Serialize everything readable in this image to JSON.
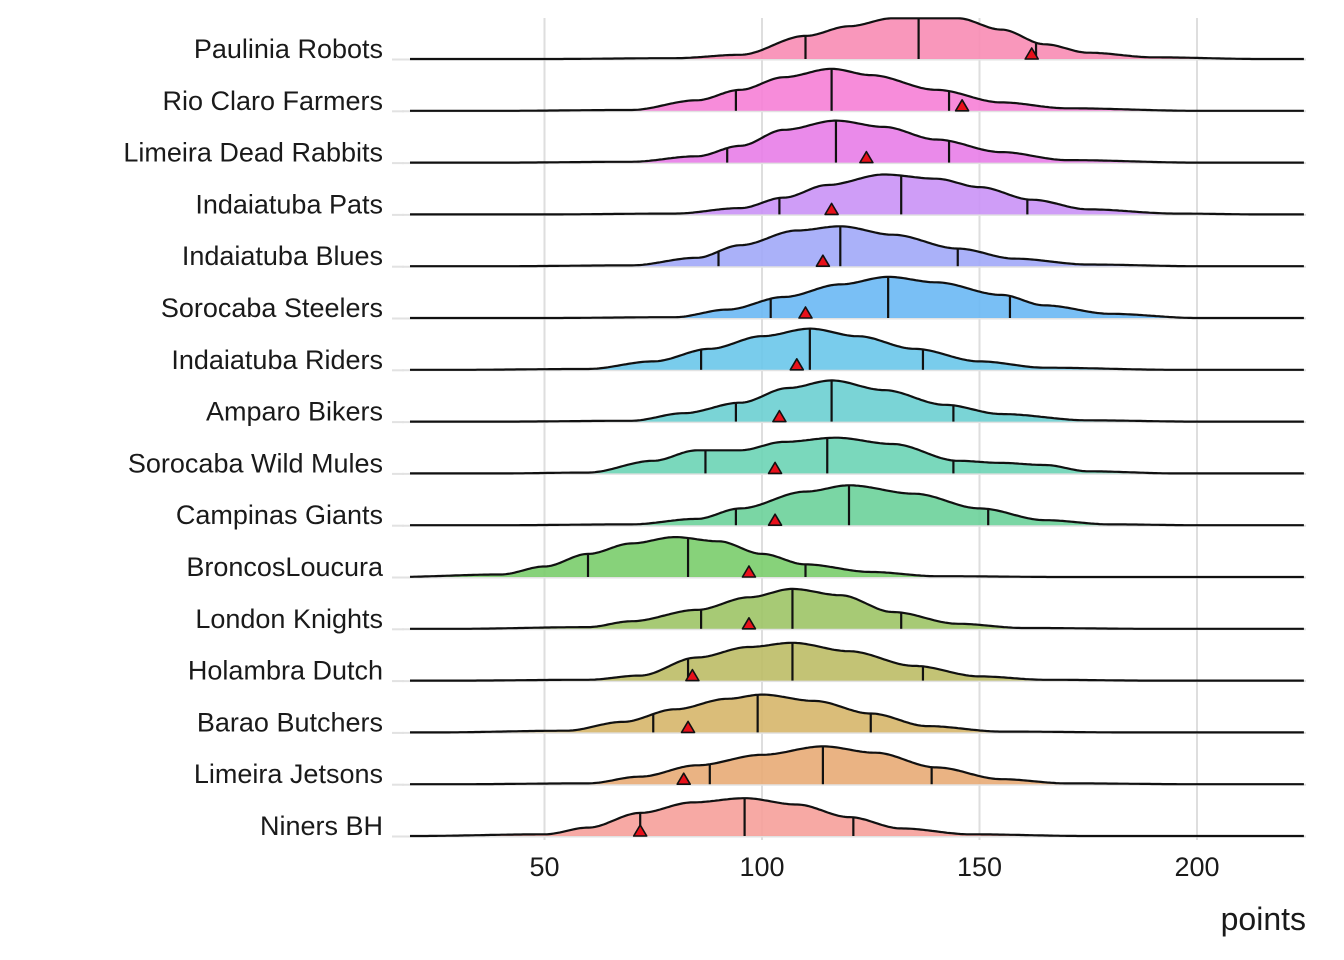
{
  "chart_data": {
    "type": "ridgeline",
    "xlabel": "points",
    "ylabel": "",
    "title": "",
    "xlim": [
      20,
      225
    ],
    "x_ticks": [
      50,
      100,
      150,
      200
    ],
    "x_tick_labels": [
      "50",
      "100",
      "150",
      "200"
    ],
    "grid": true,
    "legend": "none",
    "marker_color": "#e8101a",
    "series": [
      {
        "name": "Paulinia Robots",
        "color": "#f88cb4",
        "mode": 136,
        "q1": 110,
        "median": 136,
        "q3": 163,
        "marker": 162,
        "shape": [
          [
            50,
            0.0
          ],
          [
            80,
            0.02
          ],
          [
            95,
            0.1
          ],
          [
            110,
            0.55
          ],
          [
            120,
            0.78
          ],
          [
            130,
            0.97
          ],
          [
            145,
            0.97
          ],
          [
            155,
            0.7
          ],
          [
            165,
            0.35
          ],
          [
            175,
            0.15
          ],
          [
            190,
            0.04
          ],
          [
            215,
            0.0
          ]
        ]
      },
      {
        "name": "Rio Claro Farmers",
        "color": "#f67fd6",
        "mode": 116,
        "q1": 94,
        "median": 116,
        "q3": 143,
        "marker": 146,
        "shape": [
          [
            40,
            0.0
          ],
          [
            70,
            0.02
          ],
          [
            85,
            0.25
          ],
          [
            95,
            0.5
          ],
          [
            105,
            0.8
          ],
          [
            116,
            1.0
          ],
          [
            125,
            0.85
          ],
          [
            140,
            0.5
          ],
          [
            155,
            0.2
          ],
          [
            170,
            0.06
          ],
          [
            200,
            0.0
          ]
        ]
      },
      {
        "name": "Limeira Dead Rabbits",
        "color": "#e87de8",
        "mode": 117,
        "q1": 92,
        "median": 117,
        "q3": 143,
        "marker": 124,
        "shape": [
          [
            40,
            0.0
          ],
          [
            70,
            0.02
          ],
          [
            85,
            0.15
          ],
          [
            95,
            0.4
          ],
          [
            105,
            0.78
          ],
          [
            117,
            1.0
          ],
          [
            128,
            0.85
          ],
          [
            140,
            0.55
          ],
          [
            155,
            0.25
          ],
          [
            170,
            0.06
          ],
          [
            200,
            0.0
          ]
        ]
      },
      {
        "name": "Indaiatuba Pats",
        "color": "#ca92f6",
        "mode": 132,
        "q1": 104,
        "median": 132,
        "q3": 161,
        "marker": 116,
        "shape": [
          [
            50,
            0.0
          ],
          [
            80,
            0.02
          ],
          [
            95,
            0.15
          ],
          [
            105,
            0.4
          ],
          [
            115,
            0.7
          ],
          [
            128,
            0.95
          ],
          [
            140,
            0.85
          ],
          [
            150,
            0.65
          ],
          [
            162,
            0.35
          ],
          [
            175,
            0.12
          ],
          [
            195,
            0.02
          ],
          [
            215,
            0.0
          ]
        ]
      },
      {
        "name": "Indaiatuba Blues",
        "color": "#a1a8f8",
        "mode": 118,
        "q1": 90,
        "median": 118,
        "q3": 145,
        "marker": 114,
        "shape": [
          [
            40,
            0.0
          ],
          [
            70,
            0.02
          ],
          [
            85,
            0.2
          ],
          [
            95,
            0.5
          ],
          [
            108,
            0.85
          ],
          [
            118,
            0.95
          ],
          [
            130,
            0.75
          ],
          [
            145,
            0.42
          ],
          [
            158,
            0.18
          ],
          [
            175,
            0.04
          ],
          [
            200,
            0.0
          ]
        ]
      },
      {
        "name": "Sorocaba Steelers",
        "color": "#6ab8f4",
        "mode": 129,
        "q1": 102,
        "median": 129,
        "q3": 157,
        "marker": 110,
        "shape": [
          [
            50,
            0.0
          ],
          [
            80,
            0.02
          ],
          [
            92,
            0.2
          ],
          [
            105,
            0.5
          ],
          [
            118,
            0.8
          ],
          [
            129,
            0.98
          ],
          [
            140,
            0.85
          ],
          [
            155,
            0.55
          ],
          [
            165,
            0.3
          ],
          [
            180,
            0.1
          ],
          [
            200,
            0.0
          ]
        ]
      },
      {
        "name": "Indaiatuba Riders",
        "color": "#6ac6ea",
        "mode": 111,
        "q1": 86,
        "median": 111,
        "q3": 137,
        "marker": 108,
        "shape": [
          [
            30,
            0.0
          ],
          [
            60,
            0.02
          ],
          [
            75,
            0.2
          ],
          [
            88,
            0.5
          ],
          [
            100,
            0.8
          ],
          [
            111,
            0.98
          ],
          [
            122,
            0.8
          ],
          [
            135,
            0.5
          ],
          [
            150,
            0.2
          ],
          [
            165,
            0.05
          ],
          [
            195,
            0.0
          ]
        ]
      },
      {
        "name": "Amparo Bikers",
        "color": "#6ccfd2",
        "mode": 116,
        "q1": 94,
        "median": 116,
        "q3": 144,
        "marker": 104,
        "shape": [
          [
            40,
            0.0
          ],
          [
            70,
            0.02
          ],
          [
            82,
            0.2
          ],
          [
            95,
            0.45
          ],
          [
            106,
            0.8
          ],
          [
            116,
            0.98
          ],
          [
            128,
            0.75
          ],
          [
            142,
            0.4
          ],
          [
            155,
            0.18
          ],
          [
            175,
            0.03
          ],
          [
            200,
            0.0
          ]
        ]
      },
      {
        "name": "Sorocaba Wild Mules",
        "color": "#6cd4b5",
        "mode": 115,
        "q1": 87,
        "median": 115,
        "q3": 144,
        "marker": 103,
        "shape": [
          [
            40,
            0.0
          ],
          [
            60,
            0.02
          ],
          [
            75,
            0.3
          ],
          [
            85,
            0.55
          ],
          [
            95,
            0.55
          ],
          [
            105,
            0.75
          ],
          [
            117,
            0.85
          ],
          [
            130,
            0.7
          ],
          [
            145,
            0.3
          ],
          [
            155,
            0.25
          ],
          [
            165,
            0.2
          ],
          [
            175,
            0.05
          ],
          [
            195,
            0.0
          ]
        ]
      },
      {
        "name": "Campinas Giants",
        "color": "#6cd19a",
        "mode": 120,
        "q1": 94,
        "median": 120,
        "q3": 152,
        "marker": 103,
        "shape": [
          [
            40,
            0.0
          ],
          [
            70,
            0.02
          ],
          [
            85,
            0.15
          ],
          [
            95,
            0.4
          ],
          [
            110,
            0.8
          ],
          [
            120,
            0.95
          ],
          [
            135,
            0.75
          ],
          [
            150,
            0.4
          ],
          [
            165,
            0.12
          ],
          [
            180,
            0.02
          ],
          [
            200,
            0.0
          ]
        ]
      },
      {
        "name": "BroncosLoucura",
        "color": "#7acd6c",
        "mode": 83,
        "q1": 60,
        "median": 83,
        "q3": 110,
        "marker": 97,
        "shape": [
          [
            15,
            0.0
          ],
          [
            40,
            0.06
          ],
          [
            50,
            0.25
          ],
          [
            60,
            0.55
          ],
          [
            70,
            0.8
          ],
          [
            80,
            0.95
          ],
          [
            90,
            0.85
          ],
          [
            100,
            0.55
          ],
          [
            110,
            0.3
          ],
          [
            125,
            0.12
          ],
          [
            140,
            0.02
          ],
          [
            170,
            0.0
          ]
        ]
      },
      {
        "name": "London Knights",
        "color": "#9dc466",
        "mode": 107,
        "q1": 86,
        "median": 107,
        "q3": 132,
        "marker": 97,
        "shape": [
          [
            30,
            0.0
          ],
          [
            60,
            0.04
          ],
          [
            70,
            0.18
          ],
          [
            85,
            0.45
          ],
          [
            97,
            0.75
          ],
          [
            107,
            0.95
          ],
          [
            118,
            0.8
          ],
          [
            130,
            0.4
          ],
          [
            145,
            0.12
          ],
          [
            160,
            0.02
          ],
          [
            190,
            0.0
          ]
        ]
      },
      {
        "name": "Holambra Dutch",
        "color": "#bcbc66",
        "mode": 107,
        "q1": 83,
        "median": 107,
        "q3": 137,
        "marker": 84,
        "shape": [
          [
            30,
            0.0
          ],
          [
            60,
            0.02
          ],
          [
            72,
            0.12
          ],
          [
            85,
            0.55
          ],
          [
            97,
            0.8
          ],
          [
            107,
            0.9
          ],
          [
            120,
            0.7
          ],
          [
            135,
            0.35
          ],
          [
            150,
            0.1
          ],
          [
            165,
            0.02
          ],
          [
            190,
            0.0
          ]
        ]
      },
      {
        "name": "Barao Butchers",
        "color": "#d6b66a",
        "mode": 99,
        "q1": 75,
        "median": 99,
        "q3": 125,
        "marker": 83,
        "shape": [
          [
            25,
            0.0
          ],
          [
            55,
            0.04
          ],
          [
            68,
            0.25
          ],
          [
            80,
            0.55
          ],
          [
            92,
            0.8
          ],
          [
            100,
            0.9
          ],
          [
            112,
            0.75
          ],
          [
            125,
            0.45
          ],
          [
            138,
            0.15
          ],
          [
            155,
            0.02
          ],
          [
            185,
            0.0
          ]
        ]
      },
      {
        "name": "Limeira Jetsons",
        "color": "#e8ab76",
        "mode": 114,
        "q1": 88,
        "median": 114,
        "q3": 139,
        "marker": 82,
        "shape": [
          [
            30,
            0.0
          ],
          [
            60,
            0.02
          ],
          [
            72,
            0.18
          ],
          [
            85,
            0.45
          ],
          [
            100,
            0.7
          ],
          [
            114,
            0.9
          ],
          [
            126,
            0.75
          ],
          [
            140,
            0.4
          ],
          [
            155,
            0.12
          ],
          [
            170,
            0.02
          ],
          [
            200,
            0.0
          ]
        ]
      },
      {
        "name": "Niners BH",
        "color": "#f6a09a",
        "mode": 96,
        "q1": 72,
        "median": 96,
        "q3": 121,
        "marker": 72,
        "shape": [
          [
            20,
            0.0
          ],
          [
            50,
            0.04
          ],
          [
            60,
            0.2
          ],
          [
            72,
            0.55
          ],
          [
            84,
            0.8
          ],
          [
            96,
            0.9
          ],
          [
            108,
            0.75
          ],
          [
            120,
            0.45
          ],
          [
            132,
            0.18
          ],
          [
            148,
            0.04
          ],
          [
            175,
            0.0
          ]
        ]
      }
    ]
  }
}
